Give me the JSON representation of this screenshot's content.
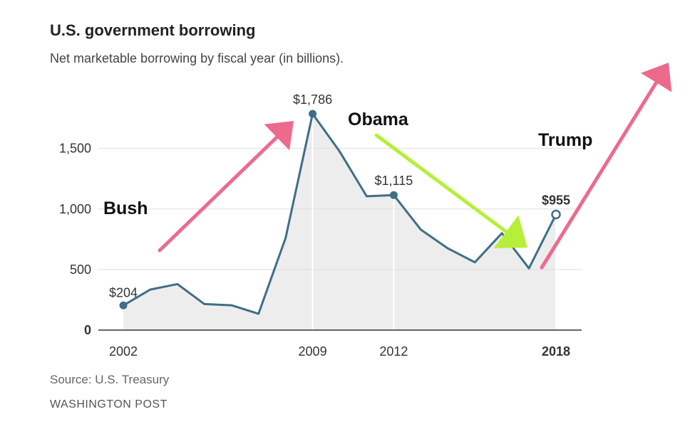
{
  "header": {
    "title": "U.S. government borrowing",
    "subtitle": "Net marketable borrowing by fiscal year (in billions)."
  },
  "footer": {
    "source": "Source: U.S. Treasury",
    "publisher": "WASHINGTON POST"
  },
  "colors": {
    "line": "#3f6f86",
    "area": "#ededed",
    "grid": "#dddddd",
    "axis": "#333333",
    "arrow_pink": "#ec6b8d",
    "arrow_green": "#b6ef3a"
  },
  "chart_data": {
    "type": "line",
    "title": "U.S. government borrowing",
    "subtitle": "Net marketable borrowing by fiscal year (in billions).",
    "x": [
      2002,
      2003,
      2004,
      2005,
      2006,
      2007,
      2008,
      2009,
      2010,
      2011,
      2012,
      2013,
      2014,
      2015,
      2016,
      2017,
      2018
    ],
    "series": [
      {
        "values": [
          204,
          335,
          380,
          215,
          205,
          135,
          760,
          1786,
          1475,
          1105,
          1115,
          830,
          675,
          560,
          800,
          510,
          955
        ]
      }
    ],
    "xlim": [
      2002,
      2018
    ],
    "ylim": [
      0,
      1786
    ],
    "y_ticks": [
      "0",
      "500",
      "1,000",
      "1,500"
    ],
    "y_tick_values": [
      0,
      500,
      1000,
      1500
    ],
    "x_ticks": [
      "2002",
      "2009",
      "2012",
      "2018"
    ],
    "x_tick_values": [
      2002,
      2009,
      2012,
      2018
    ],
    "highlight_years": [
      2009,
      2012,
      2018
    ],
    "point_labels": [
      {
        "x": 2002,
        "text": "$204"
      },
      {
        "x": 2009,
        "text": "$1,786"
      },
      {
        "x": 2012,
        "text": "$1,115"
      },
      {
        "x": 2018,
        "text": "$955"
      }
    ],
    "grid": true,
    "area_fill": true,
    "annotations": [
      {
        "text": "Bush"
      },
      {
        "text": "Obama"
      },
      {
        "text": "Trump"
      }
    ]
  }
}
